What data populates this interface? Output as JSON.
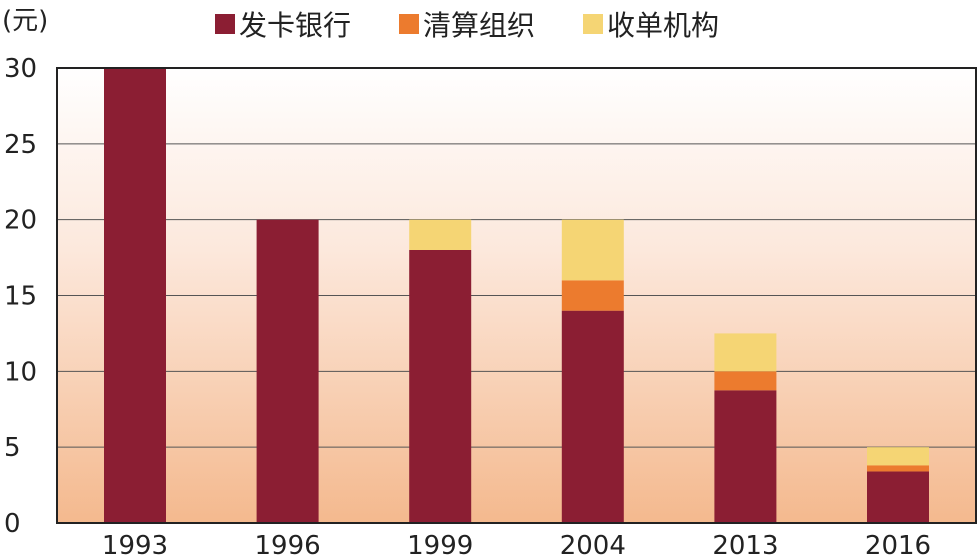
{
  "chart_data": {
    "type": "bar",
    "stacked": true,
    "ylabel": "(元)",
    "categories": [
      "1993",
      "1996",
      "1999",
      "2004",
      "2013",
      "2016"
    ],
    "series": [
      {
        "name": "发卡银行",
        "color": "#8b1e33",
        "values": [
          30,
          20,
          18,
          14,
          8.75,
          3.4
        ]
      },
      {
        "name": "清算组织",
        "color": "#ec7b2e",
        "values": [
          0,
          0,
          0,
          2,
          1.25,
          0.4
        ]
      },
      {
        "name": "收单机构",
        "color": "#f5d574",
        "values": [
          0,
          0,
          2,
          4,
          2.5,
          1.2
        ]
      }
    ],
    "yticks": [
      "0",
      "5",
      "10",
      "15",
      "20",
      "25",
      "30"
    ],
    "ylim": [
      0,
      30
    ],
    "grid": true,
    "legend_position": "top",
    "background": "gradient white to peach"
  }
}
